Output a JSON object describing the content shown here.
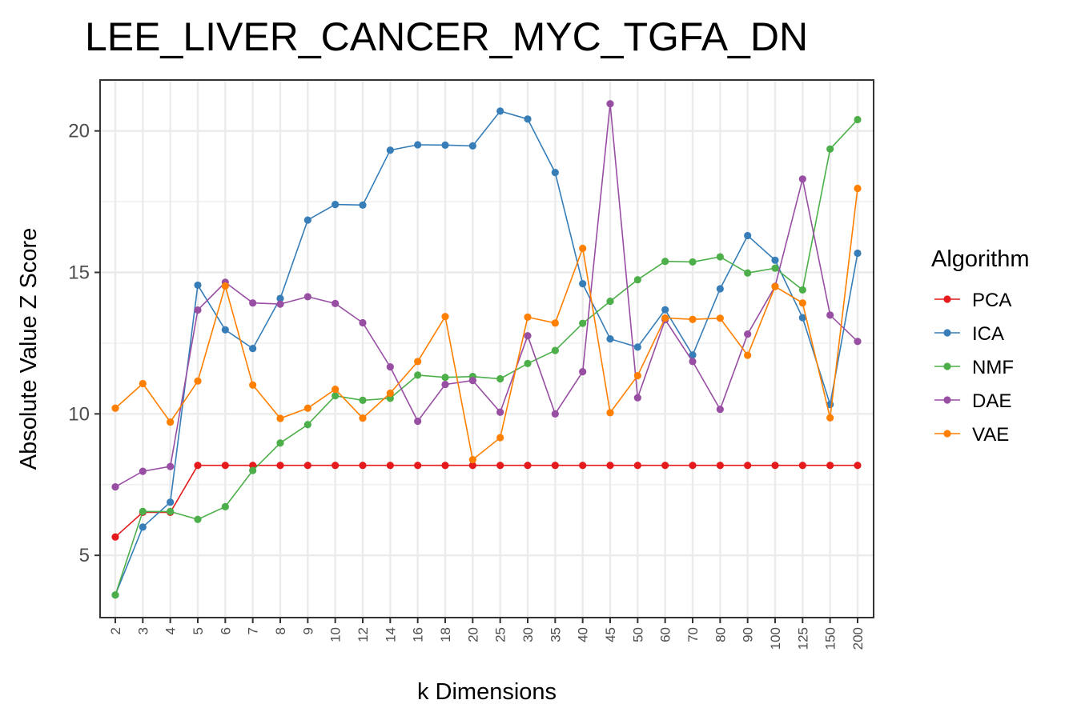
{
  "chart_data": {
    "type": "line",
    "title": "LEE_LIVER_CANCER_MYC_TGFA_DN",
    "xlabel": "k Dimensions",
    "ylabel": "Absolute Value Z Score",
    "ylim": [
      2.8,
      21.8
    ],
    "yticks": [
      "5",
      "10",
      "15",
      "20"
    ],
    "grid": true,
    "legend_title": "Algorithm",
    "legend_position": "right",
    "categories": [
      "2",
      "3",
      "4",
      "5",
      "6",
      "7",
      "8",
      "9",
      "10",
      "12",
      "14",
      "16",
      "18",
      "20",
      "25",
      "30",
      "35",
      "40",
      "45",
      "50",
      "60",
      "70",
      "80",
      "90",
      "100",
      "125",
      "150",
      "200"
    ],
    "series": [
      {
        "name": "PCA",
        "color": "#E41A1C",
        "values": [
          5.65,
          6.52,
          6.52,
          8.18,
          8.18,
          8.18,
          8.18,
          8.18,
          8.18,
          8.18,
          8.18,
          8.18,
          8.18,
          8.18,
          8.18,
          8.18,
          8.18,
          8.18,
          8.18,
          8.18,
          8.18,
          8.18,
          8.18,
          8.18,
          8.18,
          8.18,
          8.18,
          8.18
        ]
      },
      {
        "name": "ICA",
        "color": "#377EB8",
        "values": [
          3.6,
          6.0,
          6.88,
          14.55,
          12.97,
          12.31,
          14.08,
          16.85,
          17.4,
          17.38,
          19.32,
          19.51,
          19.5,
          19.47,
          20.7,
          20.42,
          18.53,
          14.6,
          12.65,
          12.36,
          13.68,
          12.08,
          14.42,
          16.3,
          15.43,
          13.4,
          10.33,
          15.68
        ]
      },
      {
        "name": "NMF",
        "color": "#4DAF4A",
        "values": [
          3.6,
          6.55,
          6.55,
          6.27,
          6.72,
          8.0,
          8.97,
          9.62,
          10.64,
          10.48,
          10.55,
          11.37,
          11.29,
          11.32,
          11.24,
          11.78,
          12.24,
          13.2,
          13.98,
          14.74,
          15.39,
          15.37,
          15.55,
          14.98,
          15.15,
          14.38,
          19.36,
          20.4
        ]
      },
      {
        "name": "DAE",
        "color": "#984EA3",
        "values": [
          7.42,
          7.97,
          8.14,
          13.67,
          14.65,
          13.92,
          13.88,
          14.14,
          13.9,
          13.22,
          11.66,
          9.74,
          11.04,
          11.18,
          10.06,
          12.76,
          10.0,
          11.49,
          20.96,
          10.57,
          13.33,
          11.85,
          10.16,
          12.82,
          14.51,
          18.3,
          13.49,
          12.56
        ]
      },
      {
        "name": "VAE",
        "color": "#FF7F00",
        "values": [
          10.2,
          11.07,
          9.71,
          11.16,
          14.52,
          11.02,
          9.84,
          10.2,
          10.87,
          9.85,
          10.73,
          11.85,
          13.44,
          8.38,
          9.16,
          13.42,
          13.21,
          15.85,
          10.04,
          11.35,
          13.39,
          13.34,
          13.38,
          12.07,
          14.5,
          13.92,
          9.86,
          17.97
        ]
      }
    ]
  }
}
